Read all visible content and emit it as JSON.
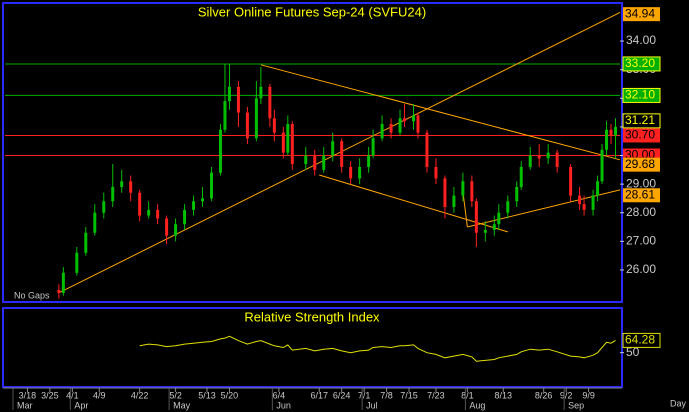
{
  "chart_data": [
    {
      "type": "candlestick",
      "title": "Silver Online Futures Sep-24 (SVFU24)",
      "annotation": "No Gaps",
      "up_color": "#00c000",
      "down_color": "#ff2020",
      "x": [
        "3/27",
        "3/28",
        "4/2",
        "4/4",
        "4/8",
        "4/10",
        "4/12",
        "4/16",
        "4/18",
        "4/22",
        "4/24",
        "4/26",
        "4/30",
        "5/2",
        "5/6",
        "5/8",
        "5/10",
        "5/14",
        "5/16",
        "5/17",
        "5/20",
        "5/22",
        "5/24",
        "5/28",
        "5/29",
        "5/31",
        "6/3",
        "6/5",
        "6/6",
        "6/7",
        "6/12",
        "6/14",
        "6/18",
        "6/20",
        "6/24",
        "6/26",
        "6/28",
        "7/2",
        "7/3",
        "7/5",
        "7/9",
        "7/11",
        "7/12",
        "7/16",
        "7/17",
        "7/19",
        "7/23",
        "7/25",
        "7/29",
        "7/31",
        "8/2",
        "8/5",
        "8/7",
        "8/9",
        "8/12",
        "8/14",
        "8/16",
        "8/19",
        "8/21",
        "8/23",
        "8/27",
        "8/29",
        "9/3",
        "9/5",
        "9/6",
        "9/10",
        "9/11",
        "9/12",
        "9/13",
        "9/16",
        "9/17"
      ],
      "open": [
        25.3,
        25.2,
        25.9,
        26.6,
        27.3,
        28.0,
        28.4,
        28.9,
        29.1,
        28.7,
        27.9,
        28.1,
        27.8,
        27.2,
        27.6,
        28.1,
        28.4,
        28.5,
        29.4,
        30.9,
        31.9,
        32.4,
        31.5,
        30.6,
        32.0,
        32.4,
        31.3,
        30.8,
        30.1,
        31.1,
        29.7,
        30.0,
        29.5,
        30.0,
        30.5,
        29.6,
        29.2,
        29.6,
        30.0,
        30.6,
        31.1,
        30.8,
        31.3,
        31.2,
        31.4,
        30.8,
        29.6,
        29.2,
        28.2,
        28.6,
        29.1,
        28.4,
        27.3,
        27.4,
        27.6,
        28.0,
        28.4,
        28.9,
        29.6,
        30.0,
        29.9,
        30.1,
        29.6,
        28.6,
        28.3,
        28.1,
        28.6,
        29.1,
        30.2,
        30.9,
        30.7
      ],
      "high": [
        25.5,
        26.1,
        26.8,
        27.5,
        28.3,
        28.7,
        29.7,
        29.5,
        29.3,
        28.8,
        28.4,
        28.3,
        27.9,
        27.8,
        28.3,
        28.6,
        28.9,
        29.6,
        31.1,
        33.2,
        33.2,
        32.6,
        31.7,
        32.6,
        33.1,
        32.5,
        31.6,
        31.0,
        31.4,
        31.2,
        30.3,
        30.2,
        30.3,
        30.8,
        30.6,
        29.8,
        29.9,
        30.3,
        30.9,
        31.4,
        31.3,
        31.6,
        31.8,
        31.8,
        31.5,
        30.9,
        29.9,
        29.3,
        28.9,
        29.4,
        29.3,
        28.5,
        27.7,
        27.9,
        28.3,
        28.6,
        29.1,
        29.8,
        30.3,
        30.4,
        30.4,
        30.2,
        29.7,
        28.9,
        28.6,
        28.8,
        29.3,
        30.4,
        31.2,
        31.1,
        31.3
      ],
      "low": [
        25.0,
        25.1,
        25.8,
        26.5,
        27.2,
        27.8,
        28.2,
        28.7,
        28.4,
        27.7,
        27.8,
        27.6,
        26.9,
        27.0,
        27.4,
        27.9,
        28.2,
        28.4,
        29.3,
        30.8,
        31.6,
        31.0,
        30.4,
        30.5,
        31.8,
        31.0,
        30.5,
        29.9,
        30.0,
        29.5,
        29.5,
        29.3,
        29.4,
        29.8,
        29.4,
        29.0,
        29.0,
        29.4,
        29.9,
        30.5,
        30.6,
        30.7,
        31.0,
        30.9,
        30.6,
        29.4,
        29.0,
        27.8,
        28.0,
        28.4,
        28.2,
        26.8,
        27.0,
        27.2,
        27.4,
        27.8,
        28.2,
        28.8,
        29.5,
        29.6,
        29.7,
        29.4,
        28.4,
        28.1,
        27.9,
        27.9,
        28.4,
        29.0,
        30.0,
        30.4,
        29.9
      ],
      "close": [
        25.2,
        25.9,
        26.6,
        27.3,
        28.0,
        28.4,
        28.9,
        29.1,
        28.7,
        27.9,
        28.1,
        27.8,
        27.2,
        27.6,
        28.1,
        28.4,
        28.5,
        29.4,
        30.9,
        31.9,
        32.4,
        31.5,
        30.6,
        32.0,
        32.4,
        31.3,
        30.8,
        30.1,
        31.1,
        29.7,
        30.0,
        29.5,
        30.0,
        30.5,
        29.6,
        29.2,
        29.6,
        30.0,
        30.6,
        31.1,
        30.8,
        31.3,
        31.2,
        31.4,
        30.8,
        29.6,
        29.2,
        28.2,
        28.6,
        29.1,
        28.4,
        27.3,
        27.4,
        27.6,
        28.0,
        28.4,
        28.9,
        29.6,
        30.0,
        29.9,
        30.1,
        29.6,
        28.6,
        28.3,
        28.1,
        28.6,
        29.1,
        30.2,
        30.9,
        30.7,
        31.0
      ],
      "xlim": [
        "3/11",
        "9/18"
      ],
      "ylim": [
        24.88,
        35.33
      ],
      "yticks": [
        {
          "value": 26,
          "label": "26.00"
        },
        {
          "value": 27,
          "label": "27.00"
        },
        {
          "value": 28,
          "label": "28.00"
        },
        {
          "value": 29,
          "label": "29.00"
        },
        {
          "value": 30,
          "label": "30.00"
        },
        {
          "value": 31,
          "label": "31.00"
        },
        {
          "value": 32,
          "label": "32.00"
        },
        {
          "value": 33,
          "label": "33.00"
        },
        {
          "value": 34,
          "label": "34.00"
        }
      ],
      "levels": [
        {
          "value": 34.94,
          "label": "34.94",
          "bg": "#ffa500",
          "fg": "#000000",
          "line": false
        },
        {
          "value": 33.2,
          "label": "33.20",
          "bg": "#00b000",
          "fg": "#ffff00",
          "line": true
        },
        {
          "value": 32.1,
          "label": "32.10",
          "bg": "#00b000",
          "fg": "#ffff00",
          "line": true
        },
        {
          "value": 31.21,
          "label": "31.21",
          "bg": "#000000",
          "fg": "#ffff00",
          "line": false
        },
        {
          "value": 30.7,
          "label": "30.70",
          "bg": "#ff2020",
          "fg": "#000000",
          "line": true
        },
        {
          "value": 30.0,
          "label": "30.00",
          "bg": "#ff2020",
          "fg": "#000000",
          "line": true
        },
        {
          "value": 29.68,
          "label": "29.68",
          "bg": "#ffa500",
          "fg": "#000000",
          "line": false
        },
        {
          "value": 28.61,
          "label": "28.61",
          "bg": "#ffa500",
          "fg": "#000000",
          "line": false
        }
      ],
      "trendline_color": "#ffa500",
      "trendlines": [
        {
          "x": [
            "3/27",
            "9/18"
          ],
          "y": [
            25.2,
            35.0
          ]
        },
        {
          "x": [
            "5/29",
            "9/18"
          ],
          "y": [
            33.17,
            29.85
          ]
        },
        {
          "x": [
            "6/17",
            "8/14"
          ],
          "y": [
            29.32,
            27.33
          ]
        },
        {
          "x": [
            "7/31",
            "8/1"
          ],
          "y": [
            28.75,
            27.5
          ]
        },
        {
          "x": [
            "8/1",
            "9/18"
          ],
          "y": [
            27.5,
            28.8
          ]
        }
      ]
    },
    {
      "type": "line",
      "title": "Relative Strength Index",
      "color": "#e0e000",
      "x": [
        "4/22",
        "4/24",
        "4/26",
        "4/30",
        "5/2",
        "5/6",
        "5/8",
        "5/10",
        "5/14",
        "5/16",
        "5/17",
        "5/20",
        "5/22",
        "5/24",
        "5/28",
        "5/29",
        "5/31",
        "6/3",
        "6/5",
        "6/6",
        "6/7",
        "6/12",
        "6/14",
        "6/18",
        "6/20",
        "6/24",
        "6/26",
        "6/28",
        "7/2",
        "7/3",
        "7/5",
        "7/9",
        "7/11",
        "7/12",
        "7/16",
        "7/17",
        "7/19",
        "7/23",
        "7/25",
        "7/29",
        "7/31",
        "8/2",
        "8/5",
        "8/7",
        "8/9",
        "8/12",
        "8/14",
        "8/16",
        "8/19",
        "8/21",
        "8/23",
        "8/27",
        "8/29",
        "9/3",
        "9/5",
        "9/6",
        "9/10",
        "9/11",
        "9/12",
        "9/13",
        "9/16",
        "9/17"
      ],
      "values": [
        58,
        60,
        59,
        57,
        58,
        60,
        61,
        62,
        63,
        66,
        67,
        69,
        64,
        60,
        63,
        64,
        60,
        58,
        56,
        59,
        53,
        55,
        52,
        54,
        55,
        52,
        50,
        52,
        53,
        56,
        57,
        56,
        58,
        58,
        59,
        55,
        50,
        48,
        44,
        46,
        48,
        45,
        40,
        41,
        42,
        44,
        46,
        48,
        51,
        54,
        53,
        54,
        51,
        46,
        45,
        44,
        47,
        50,
        56,
        62,
        61,
        64.28
      ],
      "xlim": [
        "3/11",
        "9/18"
      ],
      "ylim": [
        10,
        102
      ],
      "yticks": [
        50
      ],
      "xticks": [
        "3/18",
        "3/25",
        "4/1",
        "4/9",
        "4/22",
        "5/2",
        "5/13",
        "5/20",
        "6/4",
        "6/17",
        "6/24",
        "7/1",
        "7/8",
        "7/15",
        "7/23",
        "8/1",
        "8/13",
        "8/26",
        "9/2",
        "9/9"
      ],
      "months": [
        "Mar",
        "Apr",
        "May",
        "Jun",
        "Jul",
        "Aug",
        "Sep"
      ],
      "xlabel": "Day"
    }
  ]
}
